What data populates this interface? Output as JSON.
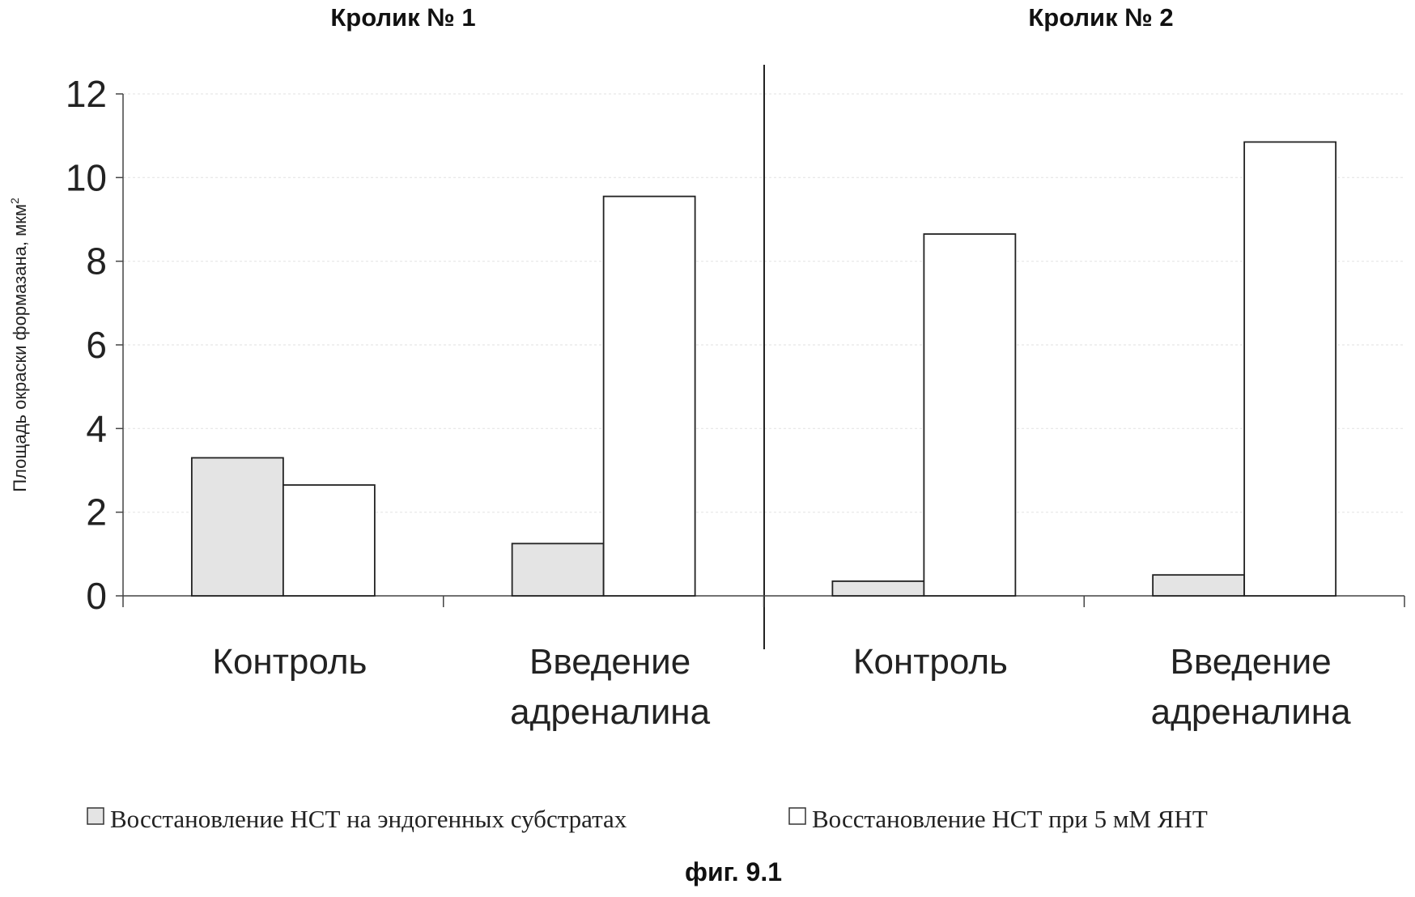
{
  "chart_data": {
    "type": "bar",
    "panel_titles": [
      "Кролик № 1",
      "Кролик № 2"
    ],
    "categories": [
      [
        "Контроль"
      ],
      [
        "Введение",
        "адреналина"
      ],
      [
        "Контроль"
      ],
      [
        "Введение",
        "адреналина"
      ]
    ],
    "category_panel": [
      0,
      0,
      1,
      1
    ],
    "series": [
      {
        "name": "Восстановление НСТ на эндогенных субстратах",
        "values": [
          3.3,
          1.25,
          0.35,
          0.5
        ],
        "fill": "#e4e4e4"
      },
      {
        "name": "Восстановление НСТ при 5 мМ ЯНТ",
        "values": [
          2.65,
          9.55,
          8.65,
          10.85
        ],
        "fill": "#ffffff"
      }
    ],
    "ylabel": "Площадь окраски формазана, мкм",
    "ylabel_superscript": "2",
    "ylim": [
      0,
      12
    ],
    "yticks": [
      0,
      2,
      4,
      6,
      8,
      10,
      12
    ],
    "grid": true,
    "legend": "bottom",
    "caption": "фиг. 9.1"
  }
}
